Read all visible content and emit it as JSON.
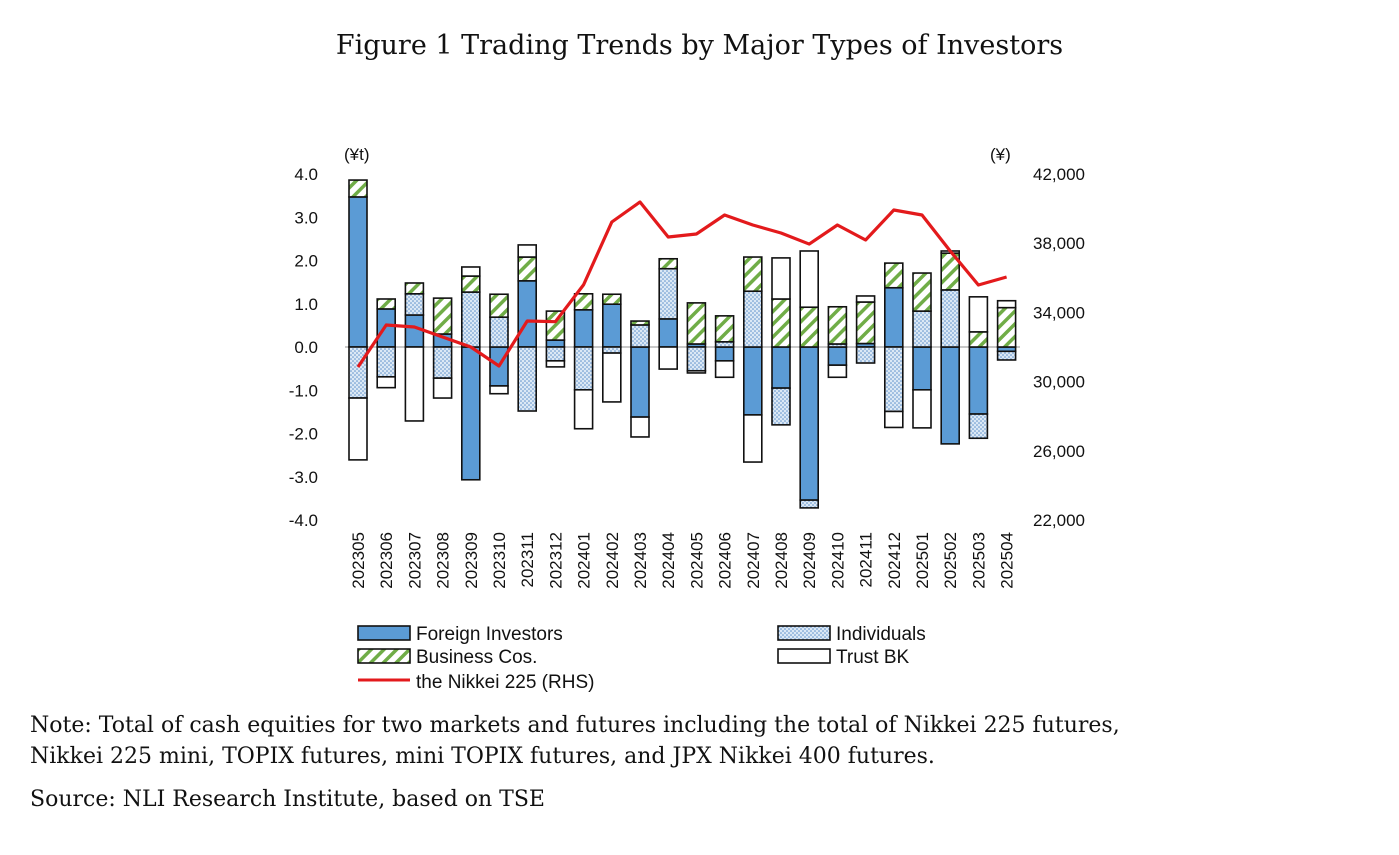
{
  "title": "Figure 1 Trading Trends by Major Types of Investors",
  "notes": [
    "Note: Total of cash equities for two markets and futures including the total of Nikkei 225 futures,",
    "Nikkei 225 mini, TOPIX futures, mini TOPIX futures, and JPX Nikkei 400 futures.",
    "Source: NLI Research Institute, based on TSE"
  ],
  "chart_data": {
    "type": "bar",
    "stacked": true,
    "left_unit": "(¥t)",
    "right_unit": "(¥)",
    "ylim": [
      -4.0,
      4.0
    ],
    "yticks": [
      "4.0",
      "3.0",
      "2.0",
      "1.0",
      "0.0",
      "-1.0",
      "-2.0",
      "-3.0",
      "-4.0"
    ],
    "y2lim": [
      22000,
      42000
    ],
    "y2ticks": [
      "42,000",
      "38,000",
      "34,000",
      "30,000",
      "26,000",
      "22,000"
    ],
    "categories": [
      "202305",
      "202306",
      "202307",
      "202308",
      "202309",
      "202310",
      "202311",
      "202312",
      "202401",
      "202402",
      "202403",
      "202404",
      "202405",
      "202406",
      "202407",
      "202408",
      "202409",
      "202410",
      "202411",
      "202412",
      "202501",
      "202502",
      "202503",
      "202504"
    ],
    "series": [
      {
        "name": "Foreign Investors",
        "color": "#5b9bd5",
        "pattern": "solid",
        "values": [
          3.47,
          0.88,
          0.74,
          0.3,
          -3.07,
          -0.9,
          1.53,
          0.16,
          0.86,
          0.99,
          -1.62,
          0.65,
          0.07,
          -0.32,
          -1.57,
          -0.95,
          -3.54,
          -0.42,
          0.08,
          1.37,
          -0.99,
          -2.24,
          -1.55,
          -0.1
        ]
      },
      {
        "name": "Individuals",
        "color": "#dbe8f5",
        "pattern": "dotted",
        "values": [
          -1.18,
          -0.69,
          0.49,
          -0.72,
          1.27,
          0.69,
          -1.48,
          -0.32,
          -0.99,
          -0.14,
          0.51,
          1.16,
          -0.55,
          0.12,
          1.29,
          -0.85,
          -0.18,
          0.07,
          -0.37,
          -1.49,
          0.83,
          1.32,
          -0.56,
          -0.2
        ]
      },
      {
        "name": "Business Cos.",
        "color": "#70ad47",
        "pattern": "hatched",
        "values": [
          0.39,
          0.23,
          0.25,
          0.83,
          0.37,
          0.53,
          0.55,
          0.67,
          0.37,
          0.23,
          0.09,
          0.23,
          0.95,
          0.6,
          0.79,
          1.11,
          0.92,
          0.86,
          0.96,
          0.57,
          0.88,
          0.85,
          0.35,
          0.91
        ]
      },
      {
        "name": "Trust BK",
        "color": "#ffffff",
        "pattern": "solid",
        "values": [
          -1.43,
          -0.25,
          -1.71,
          -0.46,
          0.21,
          -0.18,
          0.28,
          -0.14,
          -0.9,
          -1.13,
          -0.46,
          -0.51,
          -0.05,
          -0.38,
          -1.09,
          0.95,
          1.3,
          -0.28,
          0.14,
          -0.37,
          -0.88,
          0.05,
          0.81,
          0.16
        ]
      }
    ],
    "line": {
      "name": "the Nikkei 225 (RHS)",
      "color": "#e31a1c",
      "axis": "right",
      "values": [
        30844,
        33272,
        33156,
        32578,
        32000,
        30902,
        33503,
        33464,
        35600,
        39225,
        40382,
        38358,
        38532,
        39630,
        39052,
        38590,
        37950,
        39052,
        38185,
        39919,
        39630,
        37549,
        35584,
        36046
      ]
    },
    "zero_line_color": "#c8c8c8",
    "legend_placement": "bottom"
  }
}
